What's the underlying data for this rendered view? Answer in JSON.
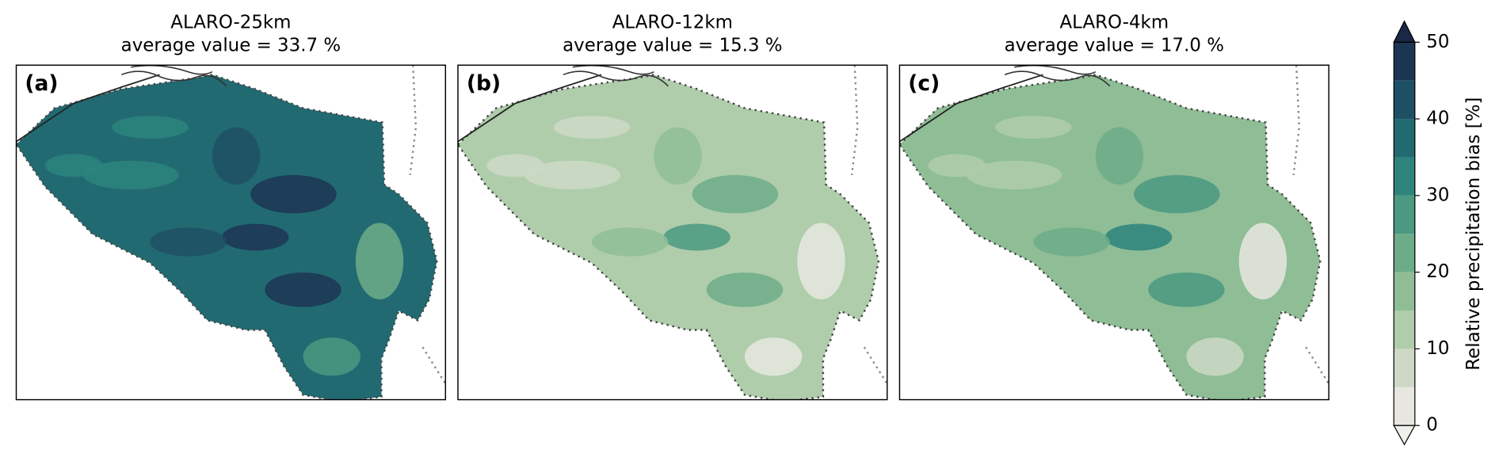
{
  "chart_data": [
    {
      "type": "contour-map",
      "label": "(a)",
      "title": "ALARO-25km",
      "subtitle": "average value = 33.7 %",
      "color": "#226a72"
    },
    {
      "type": "contour-map",
      "label": "(b)",
      "title": "ALARO-12km",
      "subtitle": "average value = 15.3 %",
      "color": "#afcdab"
    },
    {
      "type": "contour-map",
      "label": "(c)",
      "title": "ALARO-4km",
      "subtitle": "average value = 17.0 %",
      "color": "#8fbd96"
    }
  ],
  "colorbar": {
    "label": "Relative precipitation bias [%]",
    "ylim": [
      0,
      50
    ],
    "yticks": [
      0,
      10,
      20,
      30,
      40,
      50
    ],
    "levels": [
      0,
      5,
      10,
      15,
      20,
      25,
      30,
      35,
      40,
      45,
      50
    ],
    "colors": [
      "#e8e7df",
      "#cdd9c6",
      "#afcdab",
      "#8fbd96",
      "#6dac88",
      "#4a9980",
      "#2c847c",
      "#226a72",
      "#1e5065",
      "#1c3553"
    ],
    "under_color": "#f0efe9",
    "over_color": "#1a2747"
  }
}
